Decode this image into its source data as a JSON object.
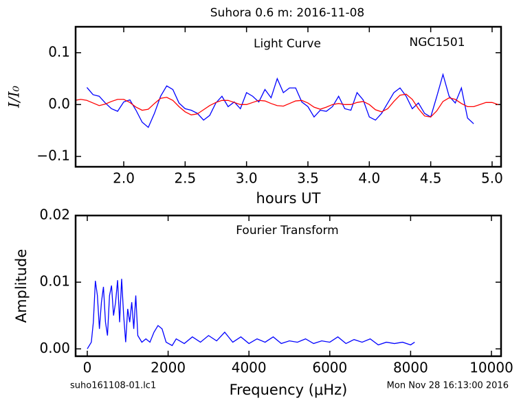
{
  "title": "Suhora 0.6 m:  2016-11-08",
  "footer_left": "suho161108-01.lc1",
  "footer_right": "Mon Nov 28 16:13:00 2016",
  "chart_data": [
    {
      "type": "line",
      "xlabel": "hours UT",
      "ylabel": "I/I₀",
      "annotations": [
        "Light Curve",
        "NGC1501"
      ],
      "xlim": [
        1.608,
        5.073
      ],
      "ylim": [
        -0.12,
        0.15
      ],
      "xticks": [
        {
          "value": 2,
          "label": "2.0"
        },
        2.5,
        {
          "value": 3,
          "label": "3.0"
        },
        3.5,
        {
          "value": 4,
          "label": "4.0"
        },
        4.5,
        {
          "value": 5,
          "label": "5.0"
        }
      ],
      "yticks": [
        {
          "value": -0.1,
          "label": "−0.1"
        },
        {
          "value": 0,
          "label": "0.0"
        },
        0.1
      ],
      "series": [
        {
          "color": "#0000ff",
          "x": [
            1.7,
            1.75,
            1.8,
            1.85,
            1.9,
            1.95,
            2.0,
            2.05,
            2.1,
            2.15,
            2.2,
            2.25,
            2.3,
            2.35,
            2.4,
            2.45,
            2.5,
            2.55,
            2.6,
            2.65,
            2.7,
            2.75,
            2.8,
            2.85,
            2.9,
            2.95,
            3.0,
            3.05,
            3.1,
            3.15,
            3.2,
            3.25,
            3.3,
            3.35,
            3.4,
            3.45,
            3.5,
            3.55,
            3.6,
            3.65,
            3.7,
            3.75,
            3.8,
            3.85,
            3.9,
            3.95,
            4.0,
            4.05,
            4.1,
            4.15,
            4.2,
            4.25,
            4.3,
            4.35,
            4.4,
            4.45,
            4.5,
            4.55,
            4.6,
            4.65,
            4.7,
            4.75,
            4.8,
            4.85
          ],
          "values": [
            0.033,
            0.019,
            0.016,
            0.003,
            -0.008,
            -0.013,
            0.005,
            0.009,
            -0.011,
            -0.034,
            -0.044,
            -0.017,
            0.016,
            0.036,
            0.029,
            0.003,
            -0.008,
            -0.011,
            -0.017,
            -0.03,
            -0.021,
            0.003,
            0.016,
            -0.004,
            0.005,
            -0.008,
            0.023,
            0.016,
            0.005,
            0.029,
            0.013,
            0.05,
            0.023,
            0.032,
            0.032,
            0.005,
            -0.004,
            -0.024,
            -0.011,
            -0.013,
            -0.004,
            0.016,
            -0.008,
            -0.011,
            0.023,
            0.009,
            -0.024,
            -0.03,
            -0.017,
            0.003,
            0.023,
            0.032,
            0.016,
            -0.008,
            0.003,
            -0.017,
            -0.024,
            0.016,
            0.058,
            0.016,
            0.003,
            0.032,
            -0.026,
            -0.037
          ]
        },
        {
          "color": "#ff0000",
          "x": [
            1.6,
            1.65,
            1.7,
            1.75,
            1.8,
            1.85,
            1.9,
            1.95,
            2.0,
            2.05,
            2.1,
            2.15,
            2.2,
            2.25,
            2.3,
            2.35,
            2.4,
            2.45,
            2.5,
            2.55,
            2.6,
            2.65,
            2.7,
            2.75,
            2.8,
            2.85,
            2.9,
            2.95,
            3.0,
            3.05,
            3.1,
            3.15,
            3.2,
            3.25,
            3.3,
            3.35,
            3.4,
            3.45,
            3.5,
            3.55,
            3.6,
            3.65,
            3.7,
            3.75,
            3.8,
            3.85,
            3.9,
            3.95,
            4.0,
            4.05,
            4.1,
            4.15,
            4.2,
            4.25,
            4.3,
            4.35,
            4.4,
            4.45,
            4.5,
            4.55,
            4.6,
            4.65,
            4.7,
            4.75,
            4.8,
            4.85,
            4.9,
            4.95,
            5.0,
            5.05
          ],
          "values": [
            0.008,
            0.01,
            0.008,
            0.003,
            -0.002,
            0.001,
            0.006,
            0.01,
            0.01,
            0.004,
            -0.005,
            -0.011,
            -0.009,
            0.002,
            0.012,
            0.014,
            0.008,
            -0.004,
            -0.014,
            -0.02,
            -0.018,
            -0.01,
            -0.002,
            0.004,
            0.008,
            0.008,
            0.004,
            0,
            0,
            0.004,
            0.008,
            0.007,
            0.002,
            -0.002,
            -0.003,
            0.002,
            0.007,
            0.008,
            0.003,
            -0.005,
            -0.009,
            -0.005,
            0,
            0.002,
            0,
            0,
            0.004,
            0.006,
            0,
            -0.01,
            -0.014,
            -0.008,
            0.006,
            0.018,
            0.02,
            0.01,
            -0.008,
            -0.022,
            -0.024,
            -0.012,
            0.006,
            0.013,
            0.01,
            0.002,
            -0.004,
            -0.004,
            0,
            0.004,
            0.004,
            0
          ]
        }
      ]
    },
    {
      "type": "line",
      "xlabel": "Frequency (μHz)",
      "ylabel": "Amplitude",
      "annotations": [
        "Fourier Transform"
      ],
      "xlim": [
        -289,
        10238
      ],
      "ylim": [
        -0.0011,
        0.02
      ],
      "xticks": [
        0,
        2000,
        4000,
        6000,
        8000,
        10000
      ],
      "yticks": [
        {
          "value": 0,
          "label": "0.00"
        },
        {
          "value": 0.01,
          "label": "0.01"
        },
        {
          "value": 0.02,
          "label": "0.02"
        }
      ],
      "series": [
        {
          "color": "#0000ff",
          "x": [
            0,
            100,
            150,
            200,
            250,
            300,
            350,
            400,
            450,
            500,
            550,
            600,
            650,
            700,
            750,
            800,
            850,
            900,
            950,
            1000,
            1050,
            1100,
            1150,
            1200,
            1250,
            1350,
            1450,
            1550,
            1650,
            1750,
            1850,
            1950,
            2100,
            2200,
            2400,
            2600,
            2800,
            3000,
            3200,
            3400,
            3600,
            3800,
            4000,
            4200,
            4400,
            4600,
            4800,
            5000,
            5200,
            5400,
            5600,
            5800,
            6000,
            6200,
            6400,
            6600,
            6800,
            7000,
            7200,
            7400,
            7600,
            7800,
            8000,
            8100
          ],
          "values": [
            0,
            0.001,
            0.004,
            0.0102,
            0.008,
            0.003,
            0.007,
            0.0093,
            0.004,
            0.002,
            0.008,
            0.0095,
            0.005,
            0.007,
            0.0103,
            0.004,
            0.0105,
            0.005,
            0.001,
            0.006,
            0.004,
            0.007,
            0.003,
            0.008,
            0.002,
            0.001,
            0.0015,
            0.001,
            0.0025,
            0.0035,
            0.003,
            0.001,
            0.0005,
            0.0015,
            0.0008,
            0.0018,
            0.001,
            0.002,
            0.0012,
            0.0025,
            0.001,
            0.0018,
            0.0008,
            0.0015,
            0.001,
            0.0018,
            0.0008,
            0.0012,
            0.001,
            0.0015,
            0.0008,
            0.0012,
            0.001,
            0.0018,
            0.0008,
            0.0014,
            0.001,
            0.0015,
            0.0006,
            0.001,
            0.0008,
            0.001,
            0.0006,
            0.001
          ]
        }
      ]
    }
  ]
}
